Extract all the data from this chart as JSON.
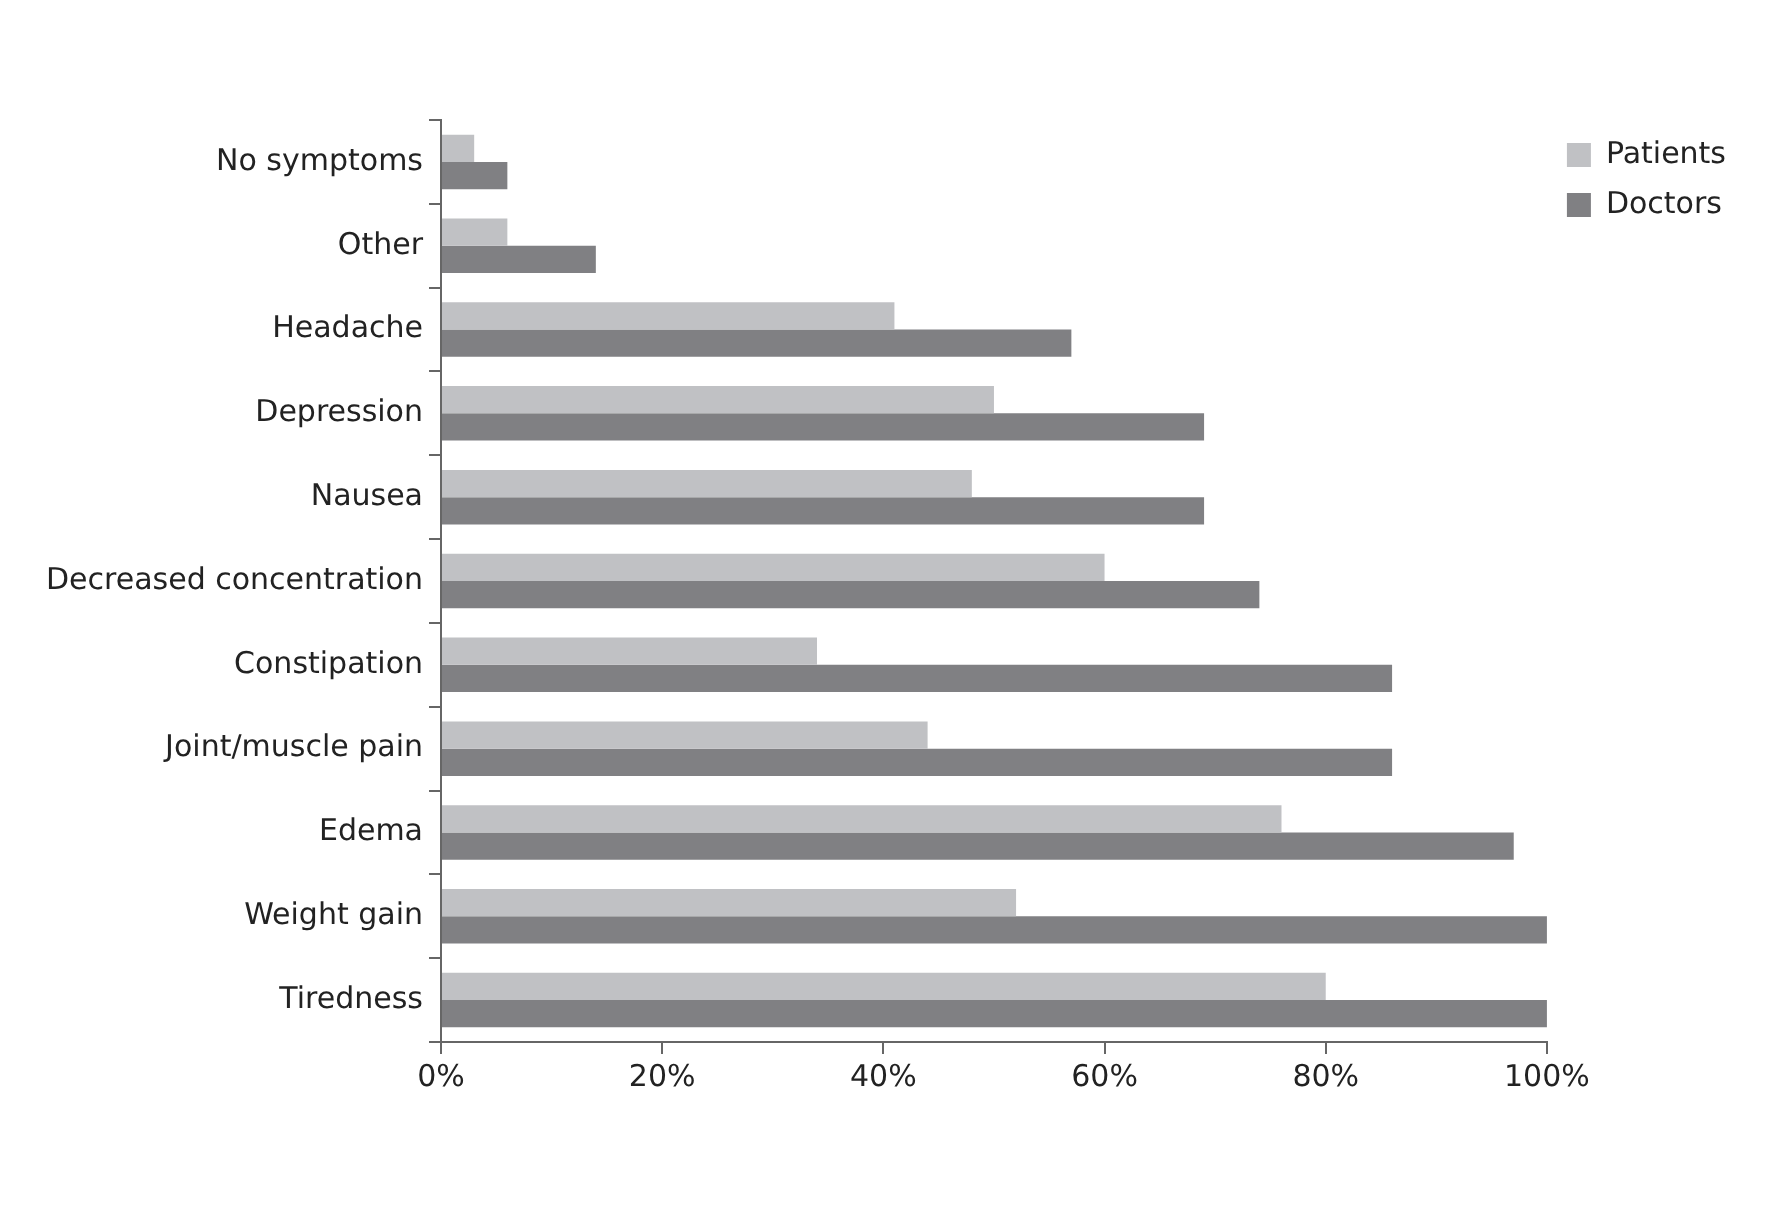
{
  "chart_data": {
    "type": "bar",
    "orientation": "horizontal",
    "categories": [
      "No symptoms",
      "Other",
      "Headache",
      "Depression",
      "Nausea",
      "Decreased concentration",
      "Constipation",
      "Joint/muscle pain",
      "Edema",
      "Weight gain",
      "Tiredness"
    ],
    "series": [
      {
        "name": "Patients",
        "color": "#c0c1c4",
        "values": [
          3,
          6,
          41,
          50,
          48,
          60,
          34,
          44,
          76,
          52,
          80
        ]
      },
      {
        "name": "Doctors",
        "color": "#808083",
        "values": [
          6,
          14,
          57,
          69,
          69,
          74,
          86,
          86,
          97,
          100,
          100
        ]
      }
    ],
    "xlim": [
      0,
      100
    ],
    "xticks": [
      {
        "value": 0,
        "label": "0%"
      },
      {
        "value": 20,
        "label": "20%"
      },
      {
        "value": 40,
        "label": "40%"
      },
      {
        "value": 60,
        "label": "60%"
      },
      {
        "value": 80,
        "label": "80%"
      },
      {
        "value": 100,
        "label": "100%"
      }
    ],
    "grid": false,
    "legend": "top right"
  }
}
